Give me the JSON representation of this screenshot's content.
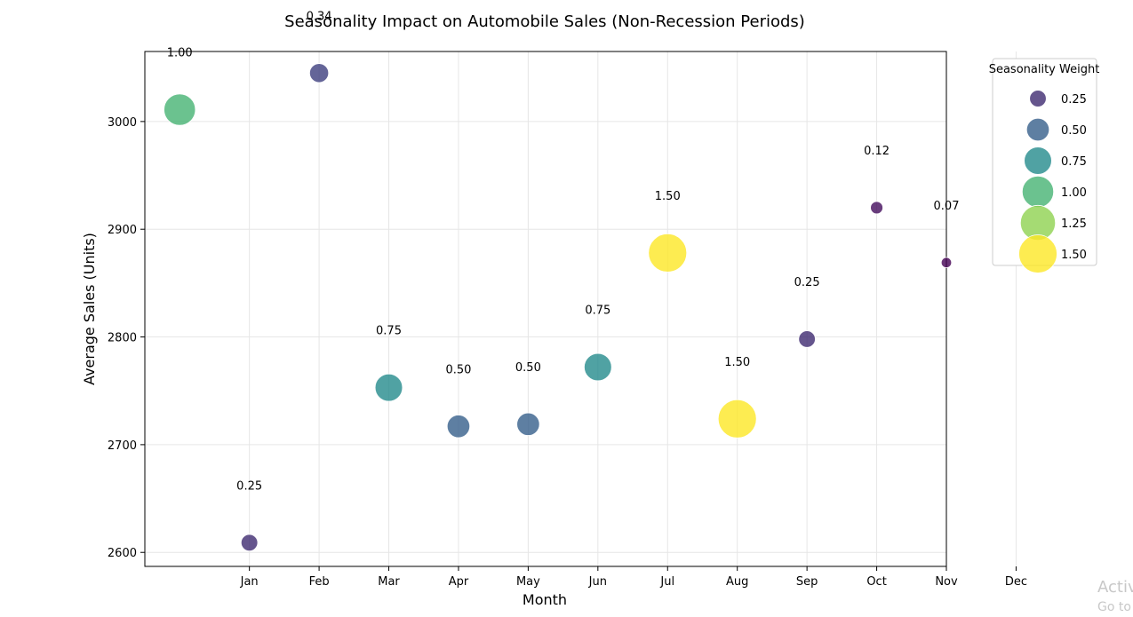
{
  "chart_data": {
    "type": "scatter",
    "title": "Seasonality Impact on Automobile Sales (Non-Recession Periods)",
    "xlabel": "Month",
    "ylabel": "Average Sales (Units)",
    "x_tick_labels": [
      "Jan",
      "Feb",
      "Mar",
      "Apr",
      "May",
      "Jun",
      "Jul",
      "Aug",
      "Sep",
      "Oct",
      "Nov",
      "Dec"
    ],
    "y_ticks": [
      2600,
      2700,
      2800,
      2900,
      3000
    ],
    "xlim": [
      -0.5,
      11
    ],
    "ylim": [
      2587,
      3065
    ],
    "grid": true,
    "color_map": "viridis",
    "points": [
      {
        "x": 0,
        "y": 3011,
        "weight": 1.0,
        "label": "1.00"
      },
      {
        "x": 1,
        "y": 2609,
        "weight": 0.25,
        "label": "0.25"
      },
      {
        "x": 2,
        "y": 3045,
        "weight": 0.34,
        "label": "0.34"
      },
      {
        "x": 3,
        "y": 2753,
        "weight": 0.75,
        "label": "0.75"
      },
      {
        "x": 4,
        "y": 2717,
        "weight": 0.5,
        "label": "0.50"
      },
      {
        "x": 5,
        "y": 2719,
        "weight": 0.5,
        "label": "0.50"
      },
      {
        "x": 6,
        "y": 2772,
        "weight": 0.75,
        "label": "0.75"
      },
      {
        "x": 7,
        "y": 2878,
        "weight": 1.5,
        "label": "1.50"
      },
      {
        "x": 8,
        "y": 2724,
        "weight": 1.5,
        "label": "1.50"
      },
      {
        "x": 9,
        "y": 2798,
        "weight": 0.25,
        "label": "0.25"
      },
      {
        "x": 10,
        "y": 2920,
        "weight": 0.12,
        "label": "0.12"
      },
      {
        "x": 11,
        "y": 2869,
        "weight": 0.07,
        "label": "0.07"
      }
    ],
    "legend": {
      "title": "Seasonality Weight",
      "placement": "outside-right-top",
      "entries": [
        {
          "weight": 0.25,
          "label": "0.25"
        },
        {
          "weight": 0.5,
          "label": "0.50"
        },
        {
          "weight": 0.75,
          "label": "0.75"
        },
        {
          "weight": 1.0,
          "label": "1.00"
        },
        {
          "weight": 1.25,
          "label": "1.25"
        },
        {
          "weight": 1.5,
          "label": "1.50"
        }
      ]
    }
  },
  "watermark": {
    "line1": "Activ",
    "line2": "Go to"
  }
}
